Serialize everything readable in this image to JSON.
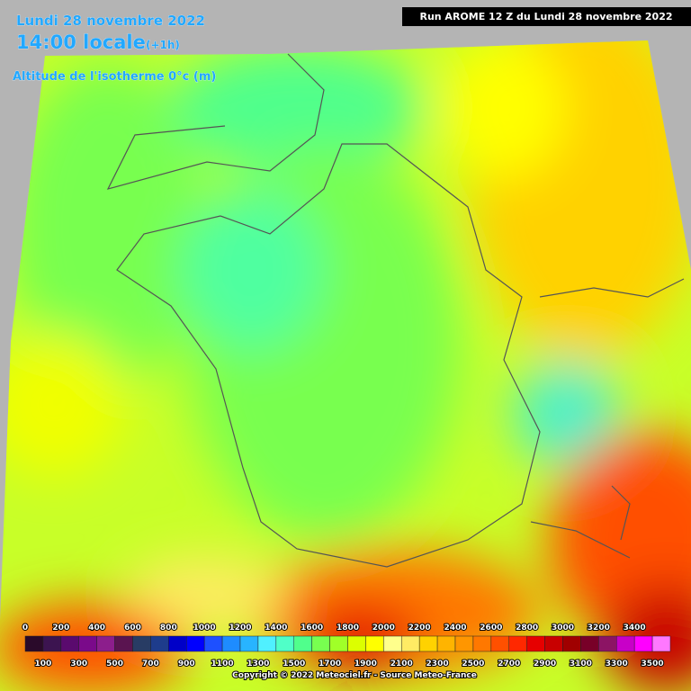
{
  "header": {
    "date": "Lundi 28 novembre 2022",
    "time": "14:00 locale",
    "offset": "(+1h)",
    "field": "Altitude de l'isotherme 0°c (m)",
    "run": "Run AROME 12 Z du Lundi 28 novembre 2022"
  },
  "legend": {
    "steps": [
      {
        "label": "0",
        "color": "#2a0a2a"
      },
      {
        "label": "100",
        "color": "#3c1450"
      },
      {
        "label": "200",
        "color": "#5a0a6e"
      },
      {
        "label": "300",
        "color": "#7a0a8a"
      },
      {
        "label": "400",
        "color": "#8c1e8c"
      },
      {
        "label": "500",
        "color": "#5a1450"
      },
      {
        "label": "600",
        "color": "#283c64"
      },
      {
        "label": "700",
        "color": "#1e3c8c"
      },
      {
        "label": "800",
        "color": "#0000c8"
      },
      {
        "label": "900",
        "color": "#0000ff"
      },
      {
        "label": "1000",
        "color": "#1e50ff"
      },
      {
        "label": "1100",
        "color": "#1e8cff"
      },
      {
        "label": "1200",
        "color": "#28b4ff"
      },
      {
        "label": "1300",
        "color": "#50f0ff"
      },
      {
        "label": "1400",
        "color": "#50ffc8"
      },
      {
        "label": "1500",
        "color": "#50ff8c"
      },
      {
        "label": "1600",
        "color": "#78ff50"
      },
      {
        "label": "1700",
        "color": "#a0ff28"
      },
      {
        "label": "1800",
        "color": "#dcff00"
      },
      {
        "label": "1900",
        "color": "#ffff00"
      },
      {
        "label": "2000",
        "color": "#ffff8c"
      },
      {
        "label": "2100",
        "color": "#ffeb64"
      },
      {
        "label": "2200",
        "color": "#ffd200"
      },
      {
        "label": "2300",
        "color": "#ffb400"
      },
      {
        "label": "2400",
        "color": "#ff9600"
      },
      {
        "label": "2500",
        "color": "#ff7800"
      },
      {
        "label": "2600",
        "color": "#ff5000"
      },
      {
        "label": "2700",
        "color": "#ff2800"
      },
      {
        "label": "2800",
        "color": "#e60000"
      },
      {
        "label": "2900",
        "color": "#c80000"
      },
      {
        "label": "3000",
        "color": "#a00000"
      },
      {
        "label": "3100",
        "color": "#780028"
      },
      {
        "label": "3200",
        "color": "#8c1464"
      },
      {
        "label": "3300",
        "color": "#c800c8"
      },
      {
        "label": "3400",
        "color": "#ff00ff"
      },
      {
        "label": "3500",
        "color": "#ff78ff"
      }
    ]
  },
  "footer": {
    "copyright": "Copyright © 2022 Meteociel.fr - Source Meteo-France"
  }
}
